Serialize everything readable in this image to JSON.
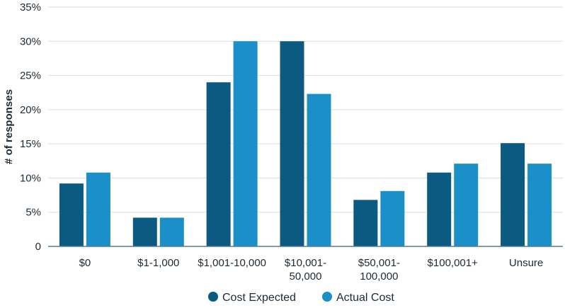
{
  "chart_data": {
    "type": "bar",
    "title": "",
    "xlabel": "",
    "ylabel": "# of responses",
    "ylim": [
      0,
      35
    ],
    "yticks": [
      0,
      5,
      10,
      15,
      20,
      25,
      30,
      35
    ],
    "ytick_labels": [
      "0",
      "5%",
      "10%",
      "15%",
      "20%",
      "25%",
      "30%",
      "35%"
    ],
    "categories": [
      [
        "$0"
      ],
      [
        "$1-1,000"
      ],
      [
        "$1,001-10,000"
      ],
      [
        "$10,001-",
        "50,000"
      ],
      [
        "$50,001-",
        "100,000"
      ],
      [
        "$100,001+"
      ],
      [
        "Unsure"
      ]
    ],
    "series": [
      {
        "name": "Cost Expected",
        "color": "#0b5a82",
        "values": [
          9.2,
          4.2,
          24.0,
          30.0,
          6.8,
          10.8,
          15.1
        ]
      },
      {
        "name": "Actual Cost",
        "color": "#1b8fc7",
        "values": [
          10.8,
          4.2,
          30.0,
          22.3,
          8.1,
          12.1,
          12.1
        ]
      }
    ],
    "grid": true,
    "legend_position": "bottom-center"
  }
}
